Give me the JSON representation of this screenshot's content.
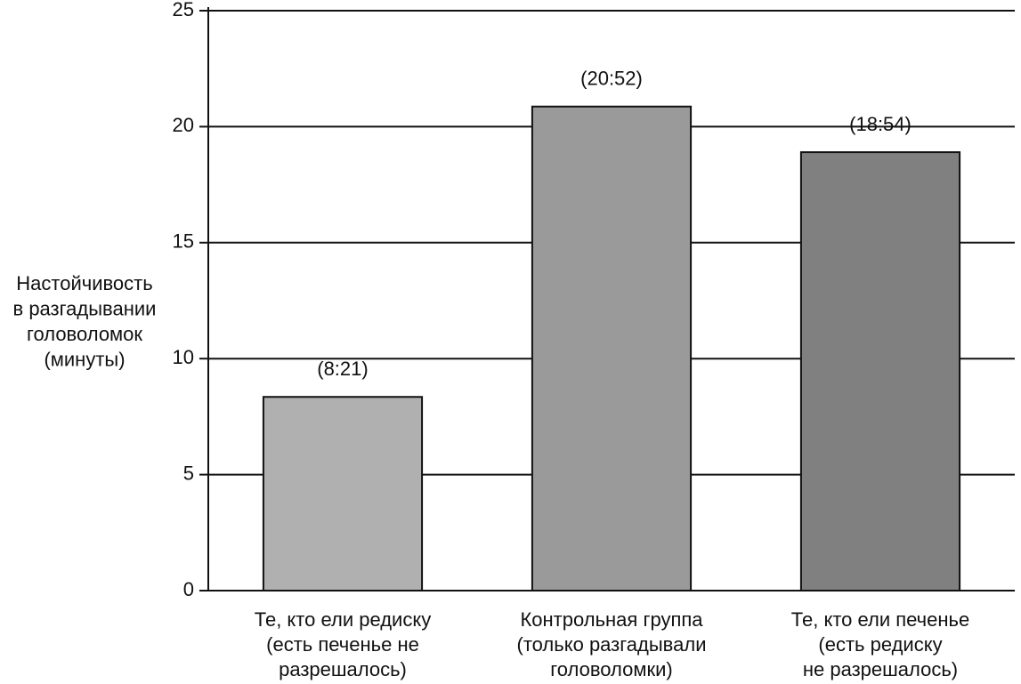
{
  "chart_data": {
    "type": "bar",
    "y_label": [
      "Настойчивость",
      "в разгадывании",
      "головоломок",
      "(минуты)"
    ],
    "categories": [
      [
        "Те, кто ели редиску",
        "(есть печенье не",
        "разрешалось)"
      ],
      [
        "Контрольная группа",
        "(только разгадывали",
        "головоломки)"
      ],
      [
        "Те, кто ели печенье",
        "(есть редиску",
        "не разрешалось)"
      ]
    ],
    "values": [
      8.35,
      20.867,
      18.9
    ],
    "value_labels": [
      "(8:21)",
      "(20:52)",
      "(18:54)"
    ],
    "colors": [
      "#b0b0b0",
      "#9a9a9a",
      "#808080"
    ],
    "ylim": [
      0,
      25
    ],
    "yticks": [
      0,
      5,
      10,
      15,
      20,
      25
    ],
    "grid": true
  }
}
